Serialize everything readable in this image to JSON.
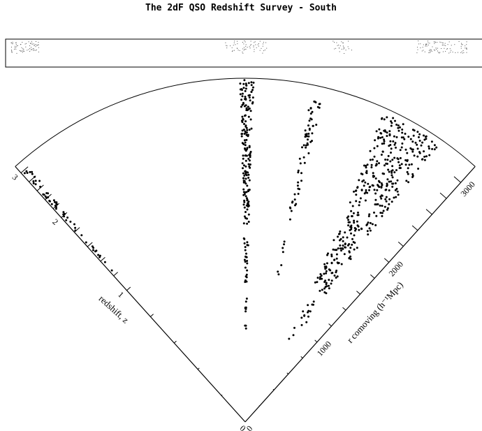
{
  "title": "The 2dF QSO Redshift Survey - South",
  "chart_data": {
    "type": "scatter",
    "title": "The 2dF QSO Redshift Survey - South",
    "left_axis": {
      "label": "redshift, z",
      "ticks": [
        "0",
        "1",
        "2",
        "3"
      ],
      "range": [
        0,
        3.2
      ]
    },
    "right_axis": {
      "label": "r comoving (h⁻¹Mpc)",
      "ticks": [
        "0",
        "1000",
        "2000",
        "3000"
      ],
      "range": [
        0,
        3200
      ]
    },
    "point_color": "#000000",
    "wedges": [
      {
        "name": "",
        "ra_deg": -42,
        "width_deg": 3.4,
        "n": 150,
        "r_min": 1480,
        "r_max": 3120
      },
      {
        "name": "",
        "ra_deg": 0.3,
        "width_deg": 2.4,
        "n": 230,
        "r_min": 780,
        "r_max": 3300
      },
      {
        "name": "",
        "ra_deg": 12.5,
        "width_deg": 2.2,
        "n": 70,
        "r_min": 1220,
        "r_max": 3060
      },
      {
        "name": "",
        "ra_deg": 29.5,
        "width_deg": 11,
        "n": 420,
        "r_min": 760,
        "r_max": 3150
      }
    ]
  }
}
